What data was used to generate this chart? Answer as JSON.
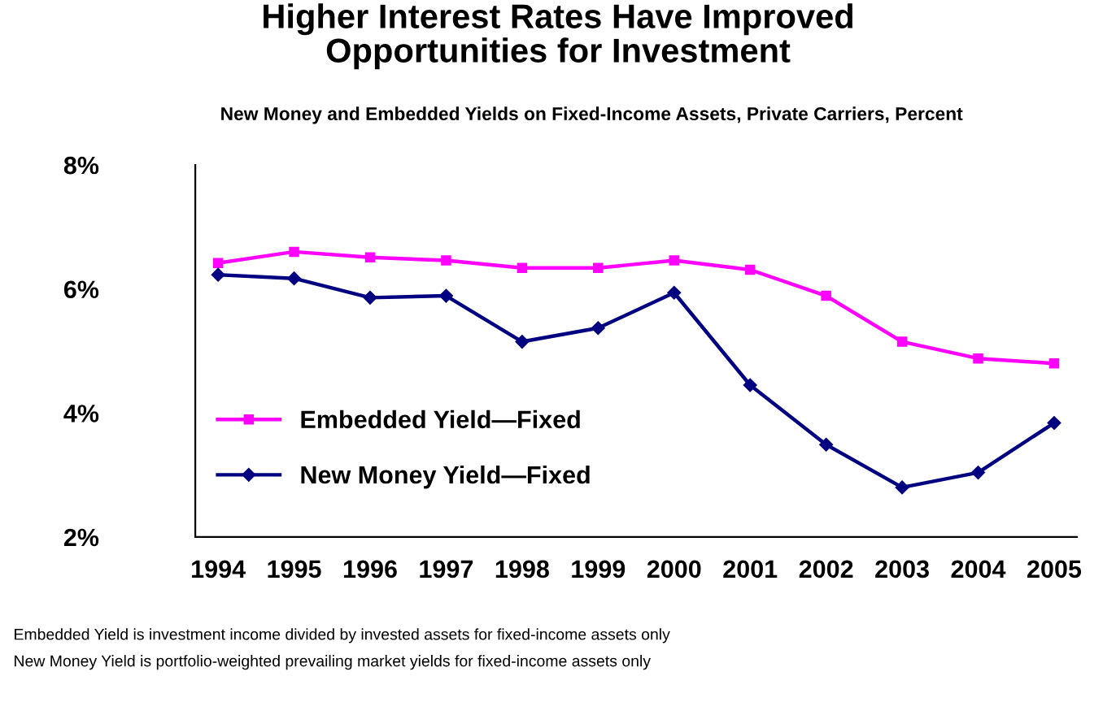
{
  "chart_data": {
    "type": "line",
    "title": "Higher Interest Rates Have Improved\nOpportunities for Investment",
    "subtitle": "New Money and Embedded Yields on Fixed-Income Assets, Private Carriers, Percent",
    "categories": [
      "1994",
      "1995",
      "1996",
      "1997",
      "1998",
      "1999",
      "2000",
      "2001",
      "2002",
      "2003",
      "2004",
      "2005"
    ],
    "series": [
      {
        "name": "Embedded Yield—Fixed",
        "color": "#ff00ff",
        "marker": "square",
        "values": [
          6.42,
          6.6,
          6.51,
          6.46,
          6.34,
          6.34,
          6.46,
          6.31,
          5.89,
          5.15,
          4.88,
          4.8
        ]
      },
      {
        "name": "New Money Yield—Fixed",
        "color": "#000080",
        "marker": "diamond",
        "values": [
          6.23,
          6.17,
          5.86,
          5.89,
          5.15,
          5.37,
          5.94,
          4.45,
          3.49,
          2.8,
          3.04,
          3.84
        ]
      }
    ],
    "ylim": [
      2,
      8
    ],
    "yticks": [
      {
        "value": 2,
        "label": "2%"
      },
      {
        "value": 4,
        "label": "4%"
      },
      {
        "value": 6,
        "label": "6%"
      },
      {
        "value": 8,
        "label": "8%"
      }
    ],
    "grid": false,
    "legend": "bottom left",
    "line_style": "solid",
    "annotations": [
      "Embedded Yield is investment income divided by invested assets for fixed-income assets only",
      "New Money Yield is portfolio-weighted prevailing market yields for fixed-income assets only"
    ]
  }
}
